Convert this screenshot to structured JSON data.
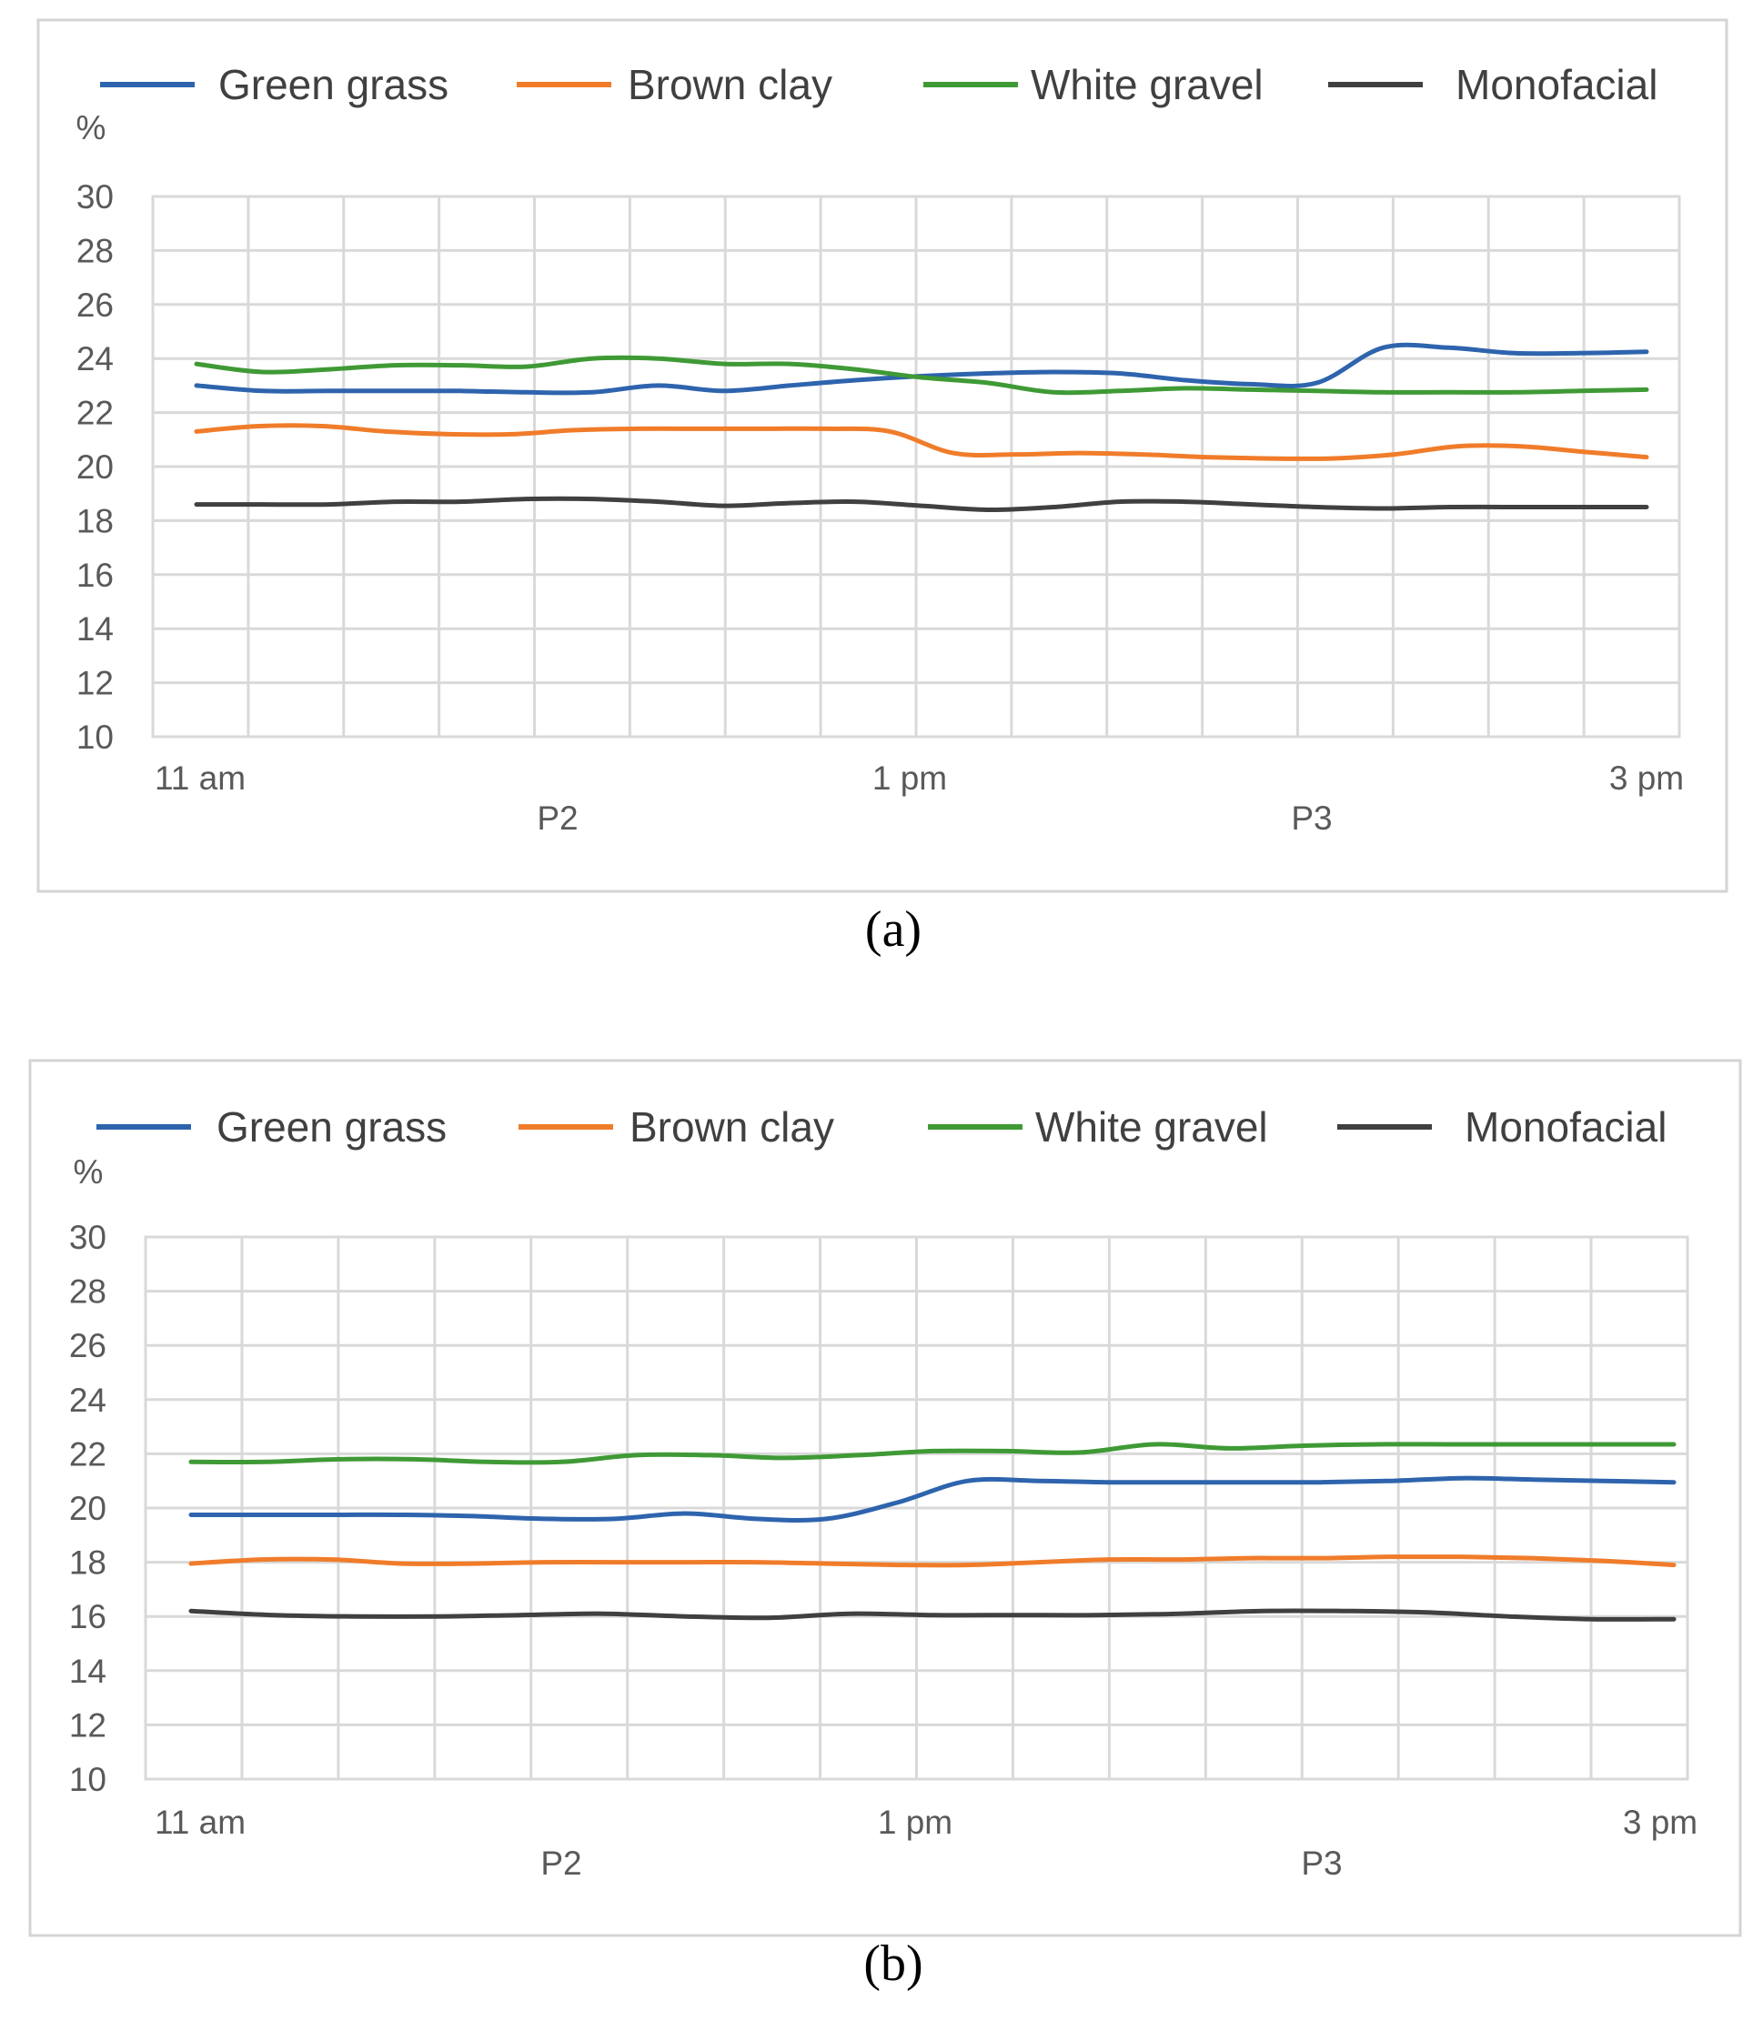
{
  "chart_data": [
    {
      "type": "line",
      "caption": "(a)",
      "ylabel": "%",
      "ylim": [
        10,
        30
      ],
      "yticks": [
        "30",
        "28",
        "26",
        "24",
        "22",
        "20",
        "18",
        "16",
        "14",
        "12",
        "10"
      ],
      "xticks": [
        "11 am",
        "1 pm",
        "3 pm"
      ],
      "xgroups": [
        "P2",
        "P3"
      ],
      "grid": true,
      "legend_position": "top",
      "series": [
        {
          "name": "Green grass",
          "color": "#2e64ad",
          "values": [
            23.0,
            22.8,
            22.8,
            22.8,
            22.8,
            22.75,
            22.75,
            23.0,
            22.8,
            23.0,
            23.2,
            23.35,
            23.45,
            23.5,
            23.45,
            23.2,
            23.05,
            23.1,
            24.4,
            24.4,
            24.2,
            24.2,
            24.25
          ]
        },
        {
          "name": "Brown clay",
          "color": "#f07c2a",
          "values": [
            21.3,
            21.5,
            21.5,
            21.3,
            21.2,
            21.2,
            21.35,
            21.4,
            21.4,
            21.4,
            21.4,
            21.3,
            20.5,
            20.45,
            20.5,
            20.45,
            20.35,
            20.3,
            20.3,
            20.45,
            20.75,
            20.75,
            20.55,
            20.35
          ]
        },
        {
          "name": "White gravel",
          "color": "#3f9a35",
          "values": [
            23.8,
            23.5,
            23.6,
            23.75,
            23.75,
            23.7,
            24.0,
            24.0,
            23.8,
            23.8,
            23.6,
            23.3,
            23.1,
            22.75,
            22.8,
            22.9,
            22.85,
            22.8,
            22.75,
            22.75,
            22.75,
            22.8,
            22.85
          ]
        },
        {
          "name": "Monofacial",
          "color": "#404040",
          "values": [
            18.6,
            18.6,
            18.6,
            18.7,
            18.7,
            18.8,
            18.8,
            18.7,
            18.55,
            18.65,
            18.7,
            18.55,
            18.4,
            18.5,
            18.7,
            18.7,
            18.6,
            18.5,
            18.45,
            18.5,
            18.5,
            18.5,
            18.5
          ]
        }
      ]
    },
    {
      "type": "line",
      "caption": "(b)",
      "ylabel": "%",
      "ylim": [
        10,
        30
      ],
      "yticks": [
        "30",
        "28",
        "26",
        "24",
        "22",
        "20",
        "18",
        "16",
        "14",
        "12",
        "10"
      ],
      "xticks": [
        "11 am",
        "1 pm",
        "3 pm"
      ],
      "xgroups": [
        "P2",
        "P3"
      ],
      "grid": true,
      "legend_position": "top",
      "series": [
        {
          "name": "Green grass",
          "color": "#2e64ad",
          "values": [
            19.75,
            19.75,
            19.75,
            19.75,
            19.7,
            19.6,
            19.6,
            19.8,
            19.6,
            19.6,
            20.2,
            21.0,
            21.0,
            20.95,
            20.95,
            20.95,
            20.95,
            21.0,
            21.1,
            21.05,
            21.0,
            20.95
          ]
        },
        {
          "name": "Brown clay",
          "color": "#f07c2a",
          "values": [
            17.95,
            18.1,
            18.1,
            17.95,
            17.95,
            18.0,
            18.0,
            18.0,
            18.0,
            17.95,
            17.9,
            17.9,
            18.0,
            18.1,
            18.1,
            18.15,
            18.15,
            18.2,
            18.2,
            18.15,
            18.05,
            17.9
          ]
        },
        {
          "name": "White gravel",
          "color": "#3f9a35",
          "values": [
            21.7,
            21.7,
            21.8,
            21.8,
            21.7,
            21.7,
            21.95,
            21.95,
            21.85,
            21.95,
            22.1,
            22.1,
            22.05,
            22.35,
            22.2,
            22.3,
            22.35,
            22.35,
            22.35,
            22.35,
            22.35
          ]
        },
        {
          "name": "Monofacial",
          "color": "#404040",
          "values": [
            16.2,
            16.05,
            16.0,
            16.0,
            16.05,
            16.1,
            16.0,
            15.95,
            16.1,
            16.05,
            16.05,
            16.05,
            16.1,
            16.2,
            16.2,
            16.15,
            16.0,
            15.9,
            15.9
          ]
        }
      ]
    }
  ]
}
